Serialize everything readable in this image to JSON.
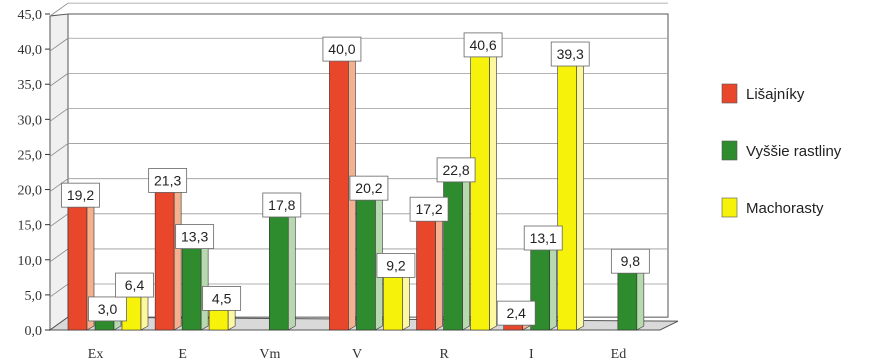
{
  "chart_data": {
    "type": "bar",
    "categories": [
      "Ex",
      "E",
      "Vm",
      "V",
      "R",
      "I",
      "Ed"
    ],
    "series": [
      {
        "name": "Lišajníky",
        "color": "#e8472c",
        "side_color": "#f4b08f",
        "values": [
          19.2,
          21.3,
          null,
          40.0,
          17.2,
          2.4,
          null
        ]
      },
      {
        "name": "Vyššie rastliny",
        "color": "#2e8b2e",
        "side_color": "#b8d8b0",
        "values": [
          3.0,
          13.3,
          17.8,
          20.2,
          22.8,
          13.1,
          9.8
        ]
      },
      {
        "name": "Machorasty",
        "color": "#f7f20a",
        "side_color": "#fbf8a0",
        "values": [
          6.4,
          4.5,
          null,
          9.2,
          40.6,
          39.3,
          null
        ]
      }
    ],
    "data_labels": [
      [
        "19,2",
        "21,3",
        "",
        "40,0",
        "17,2",
        "2,4",
        ""
      ],
      [
        "3,0",
        "13,3",
        "17,8",
        "20,2",
        "22,8",
        "13,1",
        "9,8"
      ],
      [
        "6,4",
        "4,5",
        "",
        "9,2",
        "40,6",
        "39,3",
        ""
      ]
    ],
    "yticks": [
      "0,0",
      "5,0",
      "10,0",
      "15,0",
      "20,0",
      "25,0",
      "30,0",
      "35,0",
      "40,0",
      "45,0"
    ],
    "ylim": [
      0,
      45
    ],
    "grid": true,
    "legend": "right",
    "title": "",
    "xlabel": "",
    "ylabel": ""
  }
}
